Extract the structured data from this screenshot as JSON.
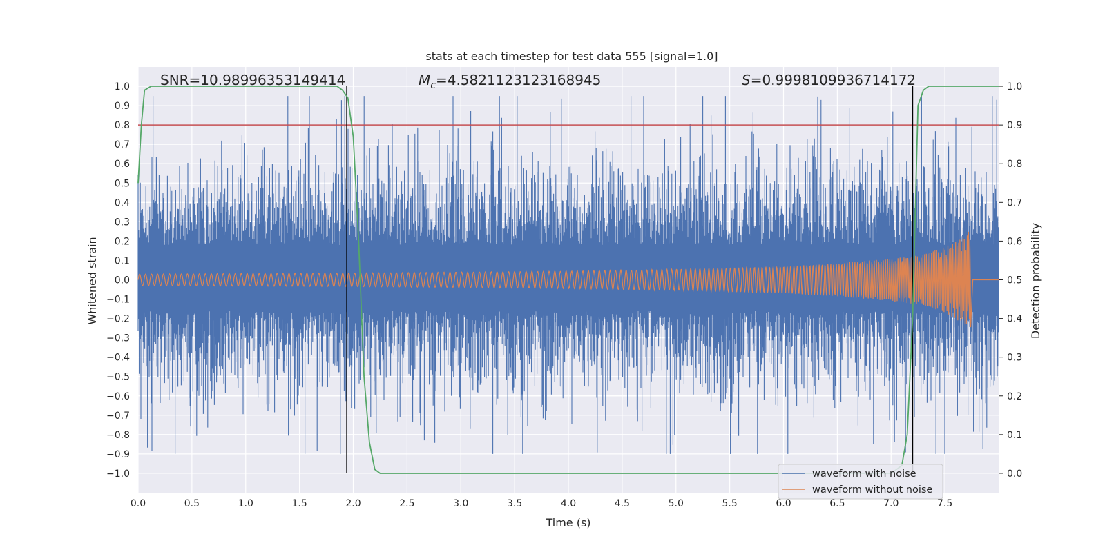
{
  "chart_data": {
    "type": "line",
    "title": "stats at each timestep for test data 555 [signal=1.0]",
    "xlabel": "Time (s)",
    "ylabel": "Whitened strain",
    "y2label": "Detection probability",
    "xlim": [
      0.0,
      8.0
    ],
    "ylim": [
      -1.1,
      1.1
    ],
    "y2lim": [
      -0.05,
      1.05
    ],
    "x_ticks": [
      "0.0",
      "0.5",
      "1.0",
      "1.5",
      "2.0",
      "2.5",
      "3.0",
      "3.5",
      "4.0",
      "4.5",
      "5.0",
      "5.5",
      "6.0",
      "6.5",
      "7.0",
      "7.5"
    ],
    "y_ticks": [
      "1.0",
      "0.9",
      "0.8",
      "0.7",
      "0.6",
      "0.5",
      "0.4",
      "0.3",
      "0.2",
      "0.1",
      "0.0",
      "−0.1",
      "−0.2",
      "−0.3",
      "−0.4",
      "−0.5",
      "−0.6",
      "−0.7",
      "−0.8",
      "−0.9",
      "−1.0"
    ],
    "y2_ticks": [
      "1.0",
      "0.9",
      "0.8",
      "0.7",
      "0.6",
      "0.5",
      "0.4",
      "0.3",
      "0.2",
      "0.1",
      "0.0"
    ],
    "annotations": {
      "snr": "SNR=10.98996353149414",
      "mc_symbol": "M",
      "mc_sub": "c",
      "mc_value": "=4.5821123123168945",
      "s_symbol": "S",
      "s_value": "=0.9998109936714172"
    },
    "grid": true,
    "legend_position": "lower-right",
    "series": [
      {
        "name": "waveform with noise",
        "color": "#4c72b0",
        "axis": "left",
        "description_type": "noise",
        "band_sigma": 0.23,
        "band_span": [
          -0.9,
          0.95
        ]
      },
      {
        "name": "waveform without noise",
        "color": "#dd8452",
        "axis": "left",
        "envelope": [
          [
            0.0,
            0.03
          ],
          [
            2.0,
            0.035
          ],
          [
            4.0,
            0.045
          ],
          [
            5.0,
            0.055
          ],
          [
            6.0,
            0.07
          ],
          [
            6.5,
            0.085
          ],
          [
            7.0,
            0.11
          ],
          [
            7.3,
            0.13
          ],
          [
            7.5,
            0.17
          ],
          [
            7.65,
            0.22
          ],
          [
            7.72,
            0.25
          ]
        ],
        "ends_at": 7.74
      },
      {
        "name": "detection probability",
        "color": "#55a868",
        "axis": "right",
        "x": [
          0.0,
          0.03,
          0.06,
          0.12,
          0.2,
          0.5,
          1.0,
          1.5,
          1.8,
          1.85,
          1.9,
          1.95,
          2.0,
          2.05,
          2.1,
          2.15,
          2.2,
          2.25,
          2.3,
          3.0,
          5.0,
          6.0,
          7.0,
          7.1,
          7.15,
          7.2,
          7.25,
          7.3,
          7.35,
          7.5,
          8.0
        ],
        "y": [
          0.75,
          0.9,
          0.99,
          1.0,
          1.0,
          1.0,
          1.0,
          1.0,
          1.0,
          1.0,
          0.99,
          0.97,
          0.87,
          0.6,
          0.25,
          0.08,
          0.01,
          0.0,
          0.0,
          0.0,
          0.0,
          0.0,
          0.0,
          0.02,
          0.1,
          0.4,
          0.95,
          0.99,
          1.0,
          1.0,
          1.0
        ]
      }
    ],
    "threshold": {
      "value": 0.8,
      "axis": "left",
      "color": "#c44e52"
    },
    "vertical_lines": [
      1.94,
      7.2
    ],
    "legend": [
      "waveform with noise",
      "waveform without noise"
    ]
  }
}
